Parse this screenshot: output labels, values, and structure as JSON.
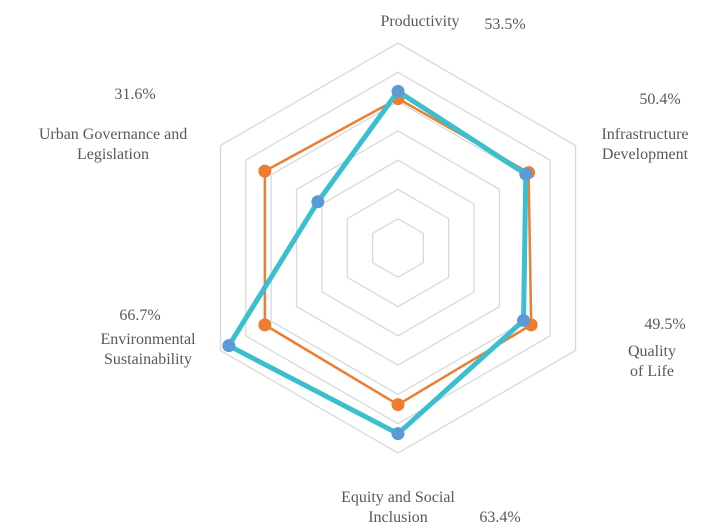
{
  "chart_data": {
    "type": "radar",
    "categories": [
      "Productivity",
      "Infrastructure Development",
      "Quality of Life",
      "Equity and Social Inclusion",
      "Environmental Sustainability",
      "Urban Governance and Legislation"
    ],
    "series": [
      {
        "color": "#ed7d31",
        "values": [
          51,
          51.5,
          52.5,
          53.5,
          52.5,
          52.5
        ]
      },
      {
        "color": "#3bbfcf",
        "values": [
          53.5,
          50.4,
          49.5,
          63.4,
          66.7,
          31.6
        ],
        "value_labels": [
          "53.5%",
          "50.4%",
          "49.5%",
          "63.4%",
          "66.7%",
          "31.6%"
        ]
      }
    ],
    "ylim": [
      0,
      70
    ],
    "yticks": [
      0,
      10,
      20,
      30,
      40,
      50,
      60,
      70
    ],
    "grid": true
  }
}
